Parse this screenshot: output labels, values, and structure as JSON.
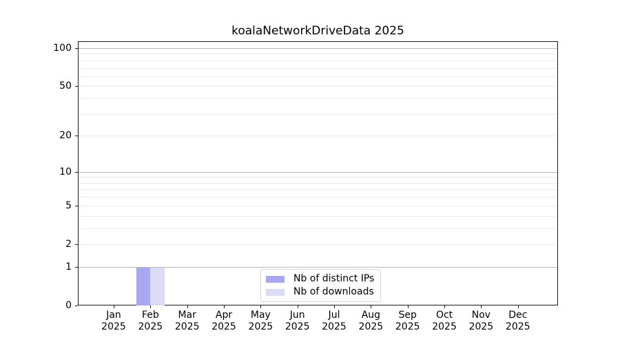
{
  "chart_data": {
    "type": "bar",
    "title": "koalaNetworkDriveData 2025",
    "x_tick_labels": [
      {
        "month": "Jan",
        "year": "2025"
      },
      {
        "month": "Feb",
        "year": "2025"
      },
      {
        "month": "Mar",
        "year": "2025"
      },
      {
        "month": "Apr",
        "year": "2025"
      },
      {
        "month": "May",
        "year": "2025"
      },
      {
        "month": "Jun",
        "year": "2025"
      },
      {
        "month": "Jul",
        "year": "2025"
      },
      {
        "month": "Aug",
        "year": "2025"
      },
      {
        "month": "Sep",
        "year": "2025"
      },
      {
        "month": "Oct",
        "year": "2025"
      },
      {
        "month": "Nov",
        "year": "2025"
      },
      {
        "month": "Dec",
        "year": "2025"
      }
    ],
    "y_ticks": [
      0,
      1,
      2,
      5,
      10,
      20,
      50,
      100
    ],
    "y_scale": "log1p",
    "ylim": [
      0,
      113
    ],
    "grid": true,
    "y_major_gridlines": [
      1,
      10,
      100
    ],
    "y_minor_gridlines": [
      2,
      3,
      4,
      5,
      6,
      7,
      8,
      9,
      20,
      30,
      40,
      50,
      60,
      70,
      80,
      90
    ],
    "legend_position": "lower center",
    "series": [
      {
        "name": "Nb of distinct IPs",
        "color": "#a8a8f1",
        "values": [
          0,
          1,
          0,
          0,
          0,
          0,
          0,
          0,
          0,
          0,
          0,
          0
        ]
      },
      {
        "name": "Nb of downloads",
        "color": "#dbdbf8",
        "values": [
          0,
          1,
          0,
          0,
          0,
          0,
          0,
          0,
          0,
          0,
          0,
          0
        ]
      }
    ]
  },
  "colors": {
    "grid_major": "#b8b8b8",
    "grid_minor": "#ebebeb",
    "spine": "#1a1a1a",
    "text": "#000000",
    "background": "#ffffff",
    "legend_border": "#d5d5d5"
  }
}
